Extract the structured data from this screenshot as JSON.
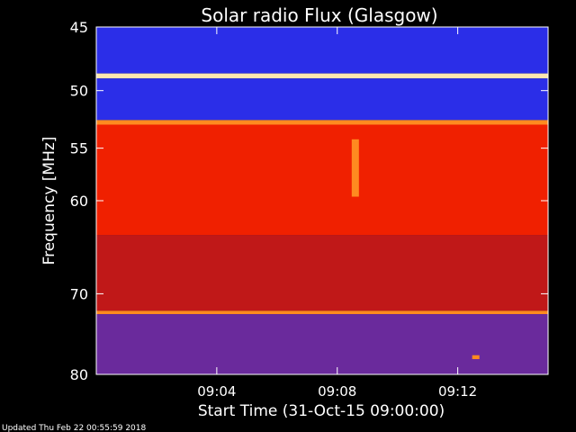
{
  "chart_data": {
    "type": "heatmap",
    "title": "Solar radio Flux (Glasgow)",
    "xlabel": "Start Time (31-Oct-15 09:00:00)",
    "ylabel": "Frequency [MHz]",
    "x_range": [
      "09:00:00",
      "09:15:00"
    ],
    "x_ticks": [
      "09:04",
      "09:08",
      "09:12"
    ],
    "x_tick_minutes": [
      4,
      8,
      12
    ],
    "y_range": [
      45,
      80
    ],
    "y_ticks": [
      45,
      50,
      55,
      60,
      70,
      80
    ],
    "y_scale": "log",
    "colormap": [
      "#1010a0",
      "#2b2ee8",
      "#6a2a9c",
      "#c01818",
      "#f02000",
      "#ff8a20",
      "#ffe6b0"
    ],
    "bands": [
      {
        "from_mhz": 45.0,
        "to_mhz": 48.6,
        "level": 0.12
      },
      {
        "from_mhz": 48.6,
        "to_mhz": 49.0,
        "level": 0.95
      },
      {
        "from_mhz": 49.0,
        "to_mhz": 52.5,
        "level": 0.15
      },
      {
        "from_mhz": 52.5,
        "to_mhz": 52.9,
        "level": 0.9
      },
      {
        "from_mhz": 52.9,
        "to_mhz": 63.5,
        "level": 0.62
      },
      {
        "from_mhz": 63.5,
        "to_mhz": 72.0,
        "level": 0.45
      },
      {
        "from_mhz": 72.0,
        "to_mhz": 72.4,
        "level": 0.85
      },
      {
        "from_mhz": 72.4,
        "to_mhz": 80.0,
        "level": 0.3
      }
    ],
    "hotspots": [
      {
        "minute": 8.6,
        "from_mhz": 54.2,
        "to_mhz": 59.6,
        "level": 0.8
      },
      {
        "minute": 12.6,
        "from_mhz": 77.5,
        "to_mhz": 78.0,
        "level": 0.85
      }
    ]
  },
  "footer": {
    "updated": "Updated Thu Feb 22 00:55:59 2018"
  }
}
